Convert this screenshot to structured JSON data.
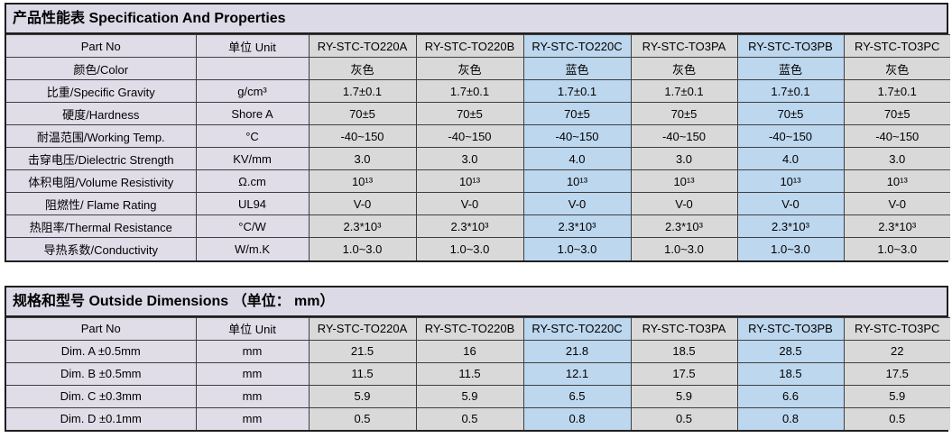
{
  "colors": {
    "title_bg": "#dddae7",
    "label_bg": "#e0dde9",
    "gray_cell": "#d9d9d9",
    "blue_cell": "#bdd7ee",
    "border": "#1f1f1f"
  },
  "table1": {
    "title": "产品性能表 Specification And Properties",
    "header": [
      "Part No",
      "单位 Unit",
      "RY-STC-TO220A",
      "RY-STC-TO220B",
      "RY-STC-TO220C",
      "RY-STC-TO3PA",
      "RY-STC-TO3PB",
      "RY-STC-TO3PC"
    ],
    "highlight_columns": [
      4,
      6
    ],
    "rows": [
      {
        "label": "颜色/Color",
        "unit": "",
        "values": [
          "灰色",
          "灰色",
          "蓝色",
          "灰色",
          "蓝色",
          "灰色"
        ]
      },
      {
        "label": "比重/Specific Gravity",
        "unit": "g/cm³",
        "values": [
          "1.7±0.1",
          "1.7±0.1",
          "1.7±0.1",
          "1.7±0.1",
          "1.7±0.1",
          "1.7±0.1"
        ]
      },
      {
        "label": "硬度/Hardness",
        "unit": "Shore A",
        "values": [
          "70±5",
          "70±5",
          "70±5",
          "70±5",
          "70±5",
          "70±5"
        ]
      },
      {
        "label": "耐温范围/Working Temp.",
        "unit": "°C",
        "values": [
          "-40~150",
          "-40~150",
          "-40~150",
          "-40~150",
          "-40~150",
          "-40~150"
        ]
      },
      {
        "label": "击穿电压/Dielectric Strength",
        "unit": "KV/mm",
        "values": [
          "3.0",
          "3.0",
          "4.0",
          "3.0",
          "4.0",
          "3.0"
        ]
      },
      {
        "label": "体积电阻/Volume Resistivity",
        "unit": "Ω.cm",
        "values": [
          "10¹³",
          "10¹³",
          "10¹³",
          "10¹³",
          "10¹³",
          "10¹³"
        ]
      },
      {
        "label": "阻燃性/ Flame Rating",
        "unit": "UL94",
        "values": [
          "V-0",
          "V-0",
          "V-0",
          "V-0",
          "V-0",
          "V-0"
        ]
      },
      {
        "label": "热阻率/Thermal Resistance",
        "unit": "°C/W",
        "values": [
          "2.3*10³",
          "2.3*10³",
          "2.3*10³",
          "2.3*10³",
          "2.3*10³",
          "2.3*10³"
        ]
      },
      {
        "label": "导热系数/Conductivity",
        "unit": "W/m.K",
        "values": [
          "1.0~3.0",
          "1.0~3.0",
          "1.0~3.0",
          "1.0~3.0",
          "1.0~3.0",
          "1.0~3.0"
        ]
      }
    ]
  },
  "table2": {
    "title": "规格和型号 Outside Dimensions （单位： mm）",
    "header": [
      "Part No",
      "单位 Unit",
      "RY-STC-TO220A",
      "RY-STC-TO220B",
      "RY-STC-TO220C",
      "RY-STC-TO3PA",
      "RY-STC-TO3PB",
      "RY-STC-TO3PC"
    ],
    "highlight_columns": [
      4,
      6
    ],
    "rows": [
      {
        "label": "Dim. A ±0.5mm",
        "unit": "mm",
        "values": [
          "21.5",
          "16",
          "21.8",
          "18.5",
          "28.5",
          "22"
        ]
      },
      {
        "label": "Dim. B ±0.5mm",
        "unit": "mm",
        "values": [
          "11.5",
          "11.5",
          "12.1",
          "17.5",
          "18.5",
          "17.5"
        ]
      },
      {
        "label": "Dim. C ±0.3mm",
        "unit": "mm",
        "values": [
          "5.9",
          "5.9",
          "6.5",
          "5.9",
          "6.6",
          "5.9"
        ]
      },
      {
        "label": "Dim. D ±0.1mm",
        "unit": "mm",
        "values": [
          "0.5",
          "0.5",
          "0.8",
          "0.5",
          "0.8",
          "0.5"
        ]
      }
    ]
  }
}
